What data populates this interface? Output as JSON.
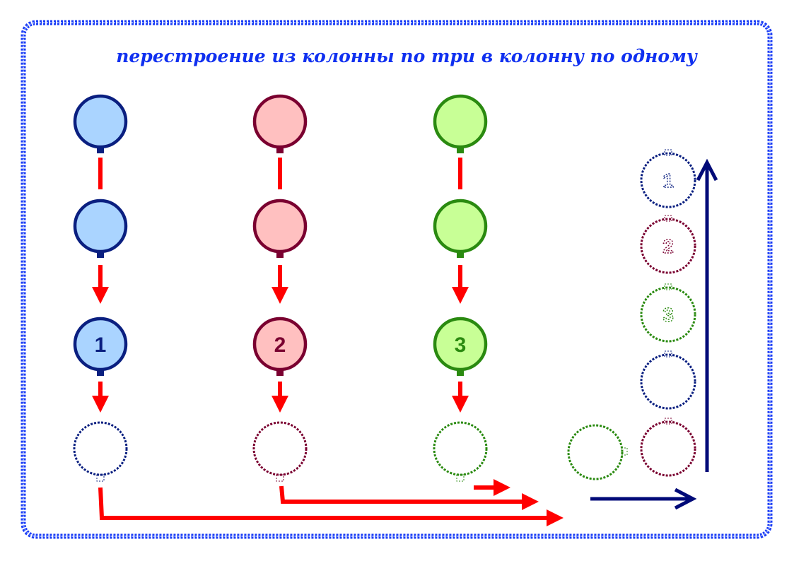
{
  "title": "перестроение из колонны по три в колонну по одному",
  "colors": {
    "frame": "#1a3cf5",
    "arrow_red": "#ff0000",
    "arrow_blue": "#000a78",
    "col1_stroke": "#0a1f80",
    "col1_fill": "#aad4ff",
    "col2_stroke": "#7a0030",
    "col2_fill": "#ffc0c0",
    "col3_stroke": "#2a8a10",
    "col3_fill": "#c8ff96"
  },
  "columns": [
    {
      "label": "1",
      "color": "blue"
    },
    {
      "label": "2",
      "color": "red"
    },
    {
      "label": "3",
      "color": "green"
    }
  ],
  "single_file": [
    "1",
    "2",
    "3"
  ]
}
